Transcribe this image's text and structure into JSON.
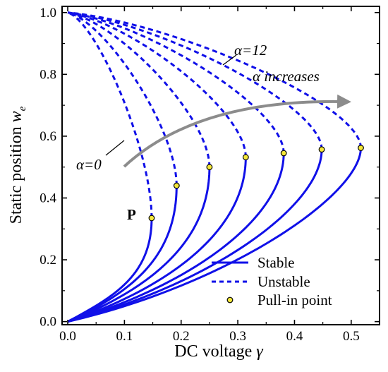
{
  "chart_data": {
    "type": "line",
    "xlabel": "DC voltage",
    "xlabel_symbol": "γ",
    "ylabel": "Static position",
    "ylabel_symbol": "w",
    "ylabel_subscript": "e",
    "xlim": [
      -0.01,
      0.55
    ],
    "ylim": [
      -0.01,
      1.02
    ],
    "xticks": [
      0.0,
      0.1,
      0.2,
      0.3,
      0.4,
      0.5
    ],
    "xtick_labels": [
      "0.0",
      "0.1",
      "0.2",
      "0.3",
      "0.4",
      "0.5"
    ],
    "yticks": [
      0.0,
      0.2,
      0.4,
      0.6,
      0.8,
      1.0
    ],
    "ytick_labels": [
      "0.0",
      "0.2",
      "0.4",
      "0.6",
      "0.8",
      "1.0"
    ],
    "grid": false,
    "legend_position": "bottom-right",
    "legend": [
      {
        "label": "Stable",
        "style": "solid"
      },
      {
        "label": "Unstable",
        "style": "dashed"
      },
      {
        "label": "Pull-in point",
        "style": "marker"
      }
    ],
    "colors": {
      "curve": "#1010e8",
      "marker_fill": "#f5e83a",
      "arrow": "#8c8c8c"
    },
    "pullin_points": [
      {
        "x": 0.148,
        "y": 0.335
      },
      {
        "x": 0.192,
        "y": 0.44
      },
      {
        "x": 0.25,
        "y": 0.5
      },
      {
        "x": 0.314,
        "y": 0.532
      },
      {
        "x": 0.381,
        "y": 0.545
      },
      {
        "x": 0.448,
        "y": 0.557
      },
      {
        "x": 0.517,
        "y": 0.562
      }
    ],
    "curve_shape_params": [
      {
        "low_end_y": 0.15,
        "low_start_y": 0.08
      },
      {
        "low_end_y": 0.2,
        "low_start_y": 0.09
      },
      {
        "low_end_y": 0.25,
        "low_start_y": 0.1
      },
      {
        "low_end_y": 0.29,
        "low_start_y": 0.105
      },
      {
        "low_end_y": 0.33,
        "low_start_y": 0.11
      },
      {
        "low_end_y": 0.37,
        "low_start_y": 0.115
      },
      {
        "low_end_y": 0.41,
        "low_start_y": 0.12
      }
    ],
    "annotations": {
      "point_label": "P",
      "alpha_low_text": "α=0",
      "alpha_high_text": "α=12",
      "arrow_text": "α increases"
    }
  }
}
